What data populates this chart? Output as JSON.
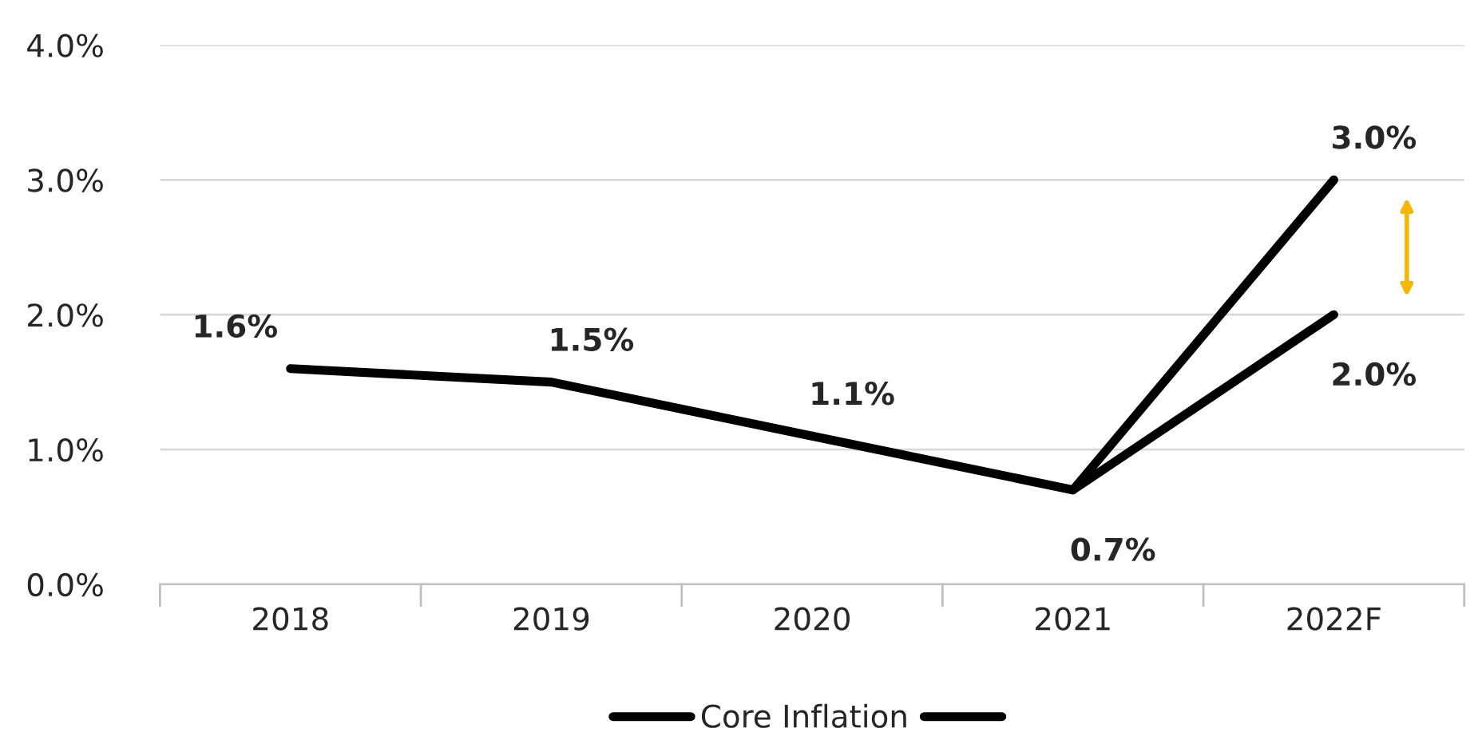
{
  "chart_data": {
    "type": "line",
    "categories": [
      "2018",
      "2019",
      "2020",
      "2021",
      "2022F"
    ],
    "series": [
      {
        "name": "Core Inflation",
        "color": "#000000",
        "values": [
          1.6,
          1.5,
          1.1,
          0.7,
          3.0
        ],
        "value_labels": [
          "1.6%",
          "1.5%",
          "1.1%",
          "0.7%",
          "3.0%"
        ]
      },
      {
        "color": "#000000",
        "values": [
          null,
          null,
          null,
          0.7,
          2.0
        ],
        "value_labels": [
          null,
          null,
          null,
          null,
          "2.0%"
        ]
      }
    ],
    "ylim": [
      0,
      4
    ],
    "yticks": [
      {
        "value": 0,
        "label": "0.0%"
      },
      {
        "value": 1,
        "label": "1.0%"
      },
      {
        "value": 2,
        "label": "2.0%"
      },
      {
        "value": 3,
        "label": "3.0%"
      },
      {
        "value": 4,
        "label": "4.0%"
      }
    ],
    "grid": "y",
    "legend": "bottom",
    "marker": "none",
    "line_style": "solid"
  }
}
